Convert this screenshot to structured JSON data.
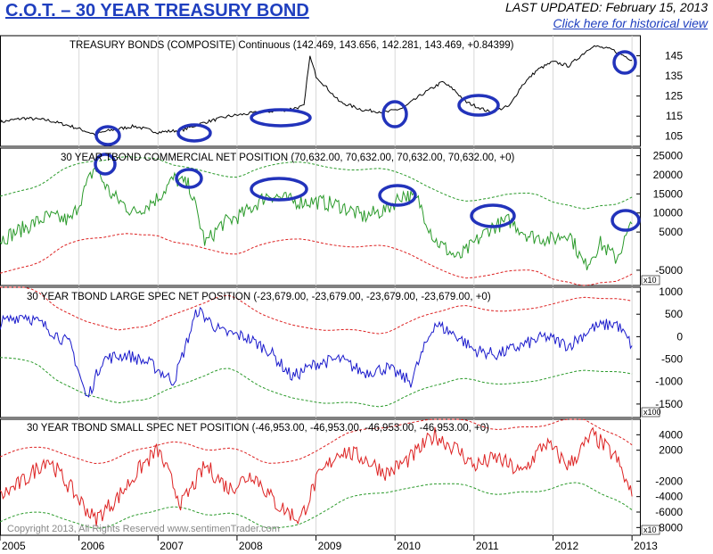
{
  "header": {
    "title": "C.O.T. – 30 YEAR TREASURY BOND",
    "updated": "LAST UPDATED:  February 15, 2013",
    "historical_link": "Click here for historical view"
  },
  "footer": {
    "copyright": "Copyright 2013, All Rights Reserved  www.sentimenTrader.com"
  },
  "colors": {
    "price": "#000000",
    "commercial": "#2a9a2a",
    "large_spec": "#1a1acc",
    "small_spec": "#dd2222",
    "band_upper_red": "#dd2222",
    "band_green": "#2a9a2a",
    "highlight": "#2233bb"
  },
  "chart_data": [
    {
      "type": "line",
      "panel": "price",
      "title": "TREASURY BONDS (COMPOSITE) Continuous (142.469, 143.656, 142.281, 143.469, +0.84399)",
      "ylim": [
        100,
        155
      ],
      "yticks": [
        105,
        115,
        125,
        135,
        145
      ],
      "ytick_labels": [
        "105",
        "115",
        "125",
        "135",
        "145"
      ],
      "series": [
        {
          "x": [
            2005.0,
            2005.3,
            2005.6,
            2005.9,
            2006.2,
            2006.4,
            2006.7,
            2007.0,
            2007.3,
            2007.6,
            2007.9,
            2008.1,
            2008.3,
            2008.6,
            2008.85,
            2008.92,
            2009.0,
            2009.3,
            2009.6,
            2009.9,
            2010.1,
            2010.35,
            2010.6,
            2010.75,
            2010.9,
            2011.2,
            2011.45,
            2011.6,
            2011.8,
            2012.0,
            2012.2,
            2012.5,
            2012.75,
            2013.0
          ],
          "values": [
            112,
            114,
            113,
            110,
            106,
            108,
            110,
            107,
            108,
            112,
            115,
            116,
            117,
            118,
            120,
            145,
            135,
            122,
            118,
            117,
            119,
            126,
            132,
            128,
            122,
            117,
            120,
            130,
            138,
            142,
            140,
            150,
            148,
            143
          ]
        }
      ]
    },
    {
      "type": "line",
      "panel": "commercial",
      "title": "30 YEAR TBOND COMMERCIAL NET POSITION (70,632.00, 70,632.00, 70,632.00, 70,632.00, +0)",
      "ylim": [
        -9000,
        27000
      ],
      "yticks": [
        25000,
        20000,
        15000,
        10000,
        5000,
        -5000
      ],
      "ytick_labels": [
        "25000",
        "20000",
        "15000",
        "10000",
        "5000",
        "-5000"
      ],
      "scale_note": "x10",
      "series": [
        {
          "x": [
            2005.0,
            2005.3,
            2005.6,
            2005.9,
            2006.2,
            2006.4,
            2006.7,
            2007.0,
            2007.2,
            2007.4,
            2007.6,
            2007.8,
            2008.1,
            2008.4,
            2008.7,
            2009.0,
            2009.3,
            2009.6,
            2009.9,
            2010.1,
            2010.3,
            2010.5,
            2010.8,
            2011.0,
            2011.2,
            2011.45,
            2011.7,
            2012.0,
            2012.2,
            2012.4,
            2012.6,
            2012.8,
            2013.0
          ],
          "values": [
            3000,
            6000,
            9000,
            8000,
            22000,
            15000,
            10000,
            14000,
            19000,
            17000,
            2000,
            7000,
            10000,
            15000,
            13000,
            13000,
            12000,
            9000,
            11000,
            15000,
            13000,
            3000,
            -2000,
            2000,
            6000,
            8000,
            4000,
            3000,
            5000,
            -4000,
            2000,
            -2000,
            7000
          ]
        }
      ]
    },
    {
      "type": "line",
      "panel": "large_spec",
      "title": "30 YEAR TBOND LARGE SPEC NET POSITION (-23,679.00, -23,679.00, -23,679.00, -23,679.00, +0)",
      "ylim": [
        -1800,
        1100
      ],
      "yticks": [
        1000,
        500,
        0,
        -500,
        -1000,
        -1500
      ],
      "ytick_labels": [
        "1000",
        "500",
        "0",
        "-500",
        "-1000",
        "-1500"
      ],
      "scale_note": "x100",
      "series": [
        {
          "x": [
            2005.0,
            2005.3,
            2005.6,
            2005.9,
            2006.1,
            2006.3,
            2006.6,
            2006.9,
            2007.2,
            2007.5,
            2007.8,
            2008.1,
            2008.4,
            2008.7,
            2009.0,
            2009.3,
            2009.6,
            2009.9,
            2010.2,
            2010.5,
            2010.8,
            2011.0,
            2011.3,
            2011.6,
            2011.9,
            2012.2,
            2012.5,
            2012.8,
            2013.0
          ],
          "values": [
            300,
            500,
            200,
            -200,
            -1400,
            -500,
            -400,
            -600,
            -1000,
            600,
            100,
            0,
            -300,
            -900,
            -600,
            -500,
            -800,
            -700,
            -1000,
            300,
            0,
            -300,
            -400,
            -200,
            0,
            -200,
            200,
            300,
            -200
          ]
        }
      ]
    },
    {
      "type": "line",
      "panel": "small_spec",
      "title": "30 YEAR TBOND SMALL SPEC NET POSITION (-46,953.00, -46,953.00, -46,953.00, -46,953.00, +0)",
      "ylim": [
        -9000,
        6000
      ],
      "yticks": [
        4000,
        2000,
        -2000,
        -4000,
        -6000,
        -8000
      ],
      "ytick_labels": [
        "4000",
        "2000",
        "-2000",
        "-4000",
        "-6000",
        "-8000"
      ],
      "scale_note": "x10",
      "series": [
        {
          "x": [
            2005.0,
            2005.3,
            2005.6,
            2005.9,
            2006.2,
            2006.5,
            2006.8,
            2007.0,
            2007.3,
            2007.6,
            2007.9,
            2008.2,
            2008.5,
            2008.8,
            2009.0,
            2009.3,
            2009.6,
            2009.9,
            2010.2,
            2010.5,
            2010.8,
            2011.0,
            2011.3,
            2011.6,
            2011.9,
            2012.2,
            2012.5,
            2012.8,
            2013.0
          ],
          "values": [
            -4000,
            -2000,
            1000,
            -3000,
            -7000,
            -4000,
            0,
            2000,
            -5000,
            0,
            -3000,
            -1000,
            -5000,
            -7000,
            -2000,
            2000,
            1000,
            -1000,
            1000,
            4000,
            2000,
            0,
            1000,
            -1000,
            3000,
            0,
            4000,
            1000,
            -4000
          ]
        }
      ]
    }
  ],
  "x_axis": {
    "range": [
      2005.0,
      2013.1
    ],
    "ticks": [
      2005,
      2006,
      2007,
      2008,
      2009,
      2010,
      2011,
      2012,
      2013
    ],
    "labels": [
      "2005",
      "2006",
      "2007",
      "2008",
      "2009",
      "2010",
      "2011",
      "2012",
      "2013"
    ]
  }
}
